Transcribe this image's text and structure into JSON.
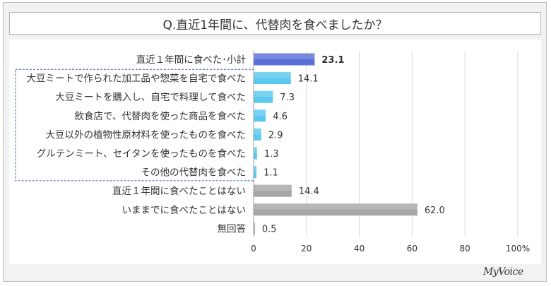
{
  "chart_data": {
    "type": "bar",
    "orientation": "horizontal",
    "title": "Q.直近1年間に、代替肉を食べましたか？",
    "categories": [
      "直近１年間に食べた･小計",
      "大豆ミートで作られた加工品や惣菜を自宅で食べた",
      "大豆ミートを購入し、自宅で料理して食べた",
      "飲食店で、代替肉を使った商品を食べた",
      "大豆以外の植物性原材料を使ったものを食べた",
      "グルテンミート、セイタンを使ったものを食べた",
      "その他の代替肉を食べた",
      "直近１年間に食べたことはない",
      "いままでに食べたことはない",
      "無回答"
    ],
    "values": [
      23.1,
      14.1,
      7.3,
      4.6,
      2.9,
      1.3,
      1.1,
      14.4,
      62.0,
      0.5
    ],
    "value_labels": [
      "23.1",
      "14.1",
      "7.3",
      "4.6",
      "2.9",
      "1.3",
      "1.1",
      "14.4",
      "62.0",
      "0.5"
    ],
    "bar_groups": [
      "subtotal",
      "detail",
      "detail",
      "detail",
      "detail",
      "detail",
      "detail",
      "other",
      "other",
      "other"
    ],
    "colors": {
      "subtotal": "#5b6fd6",
      "detail": "#5bc8f0",
      "other": "#a6a6a6",
      "grid": "#d9d9d9",
      "dashed_box": "#3b5fb5"
    },
    "xlim": [
      0,
      100
    ],
    "x_ticks": [
      0,
      20,
      40,
      60,
      80,
      100
    ],
    "x_tick_labels": [
      "0",
      "20",
      "40",
      "60",
      "80",
      "100%"
    ],
    "grid": true,
    "legend": "none"
  },
  "brand": {
    "logo_text": "MyVoice"
  }
}
